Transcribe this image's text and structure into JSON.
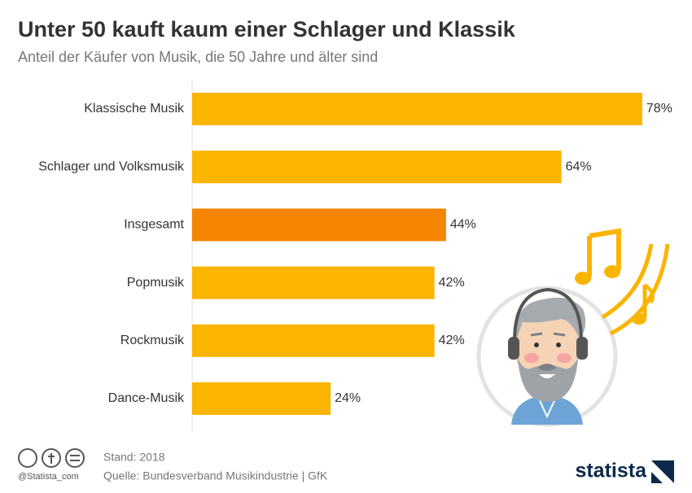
{
  "chart_data": {
    "type": "bar",
    "orientation": "horizontal",
    "title": "Unter 50 kauft kaum einer Schlager und Klassik",
    "subtitle": "Anteil der Käufer von Musik, die 50 Jahre und älter sind",
    "categories": [
      "Klassische Musik",
      "Schlager und Volksmusik",
      "Insgesamt",
      "Popmusik",
      "Rockmusik",
      "Dance-Musik"
    ],
    "values": [
      78,
      64,
      44,
      42,
      42,
      24
    ],
    "value_labels": [
      "78%",
      "64%",
      "44%",
      "42%",
      "42%",
      "24%"
    ],
    "colors": [
      "#fbb400",
      "#fbb400",
      "#f58400",
      "#fbb400",
      "#fbb400",
      "#fbb400"
    ],
    "xlim": [
      0,
      80
    ],
    "note": "Stand: 2018",
    "source": "Quelle: Bundesverband Musikindustrie | GfK",
    "credit": "@Statista_com",
    "brand": "statista"
  }
}
